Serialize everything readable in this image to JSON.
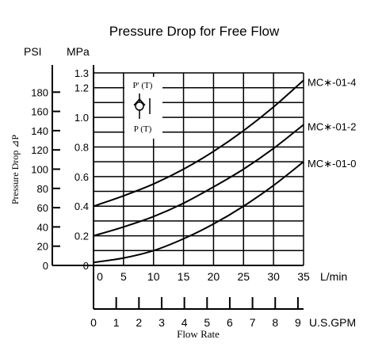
{
  "chart_data": {
    "type": "line",
    "title": "Pressure Drop for Free Flow",
    "y_unit_psi": "PSI",
    "y_unit_mpa": "MPa",
    "ylabel": "Pressure Drop ⊿P",
    "xlabel": "Flow Rate",
    "x_unit_lmin": "L/min",
    "x_unit_gpm": "U.S.GPM",
    "psi_ticks": [
      "180",
      "160",
      "140",
      "120",
      "100",
      "80",
      "60",
      "40",
      "20",
      "0"
    ],
    "psi_tick_values": [
      180,
      160,
      140,
      120,
      100,
      80,
      60,
      40,
      20,
      0
    ],
    "mpa_ticks": [
      "1.3",
      "1.2",
      "1.0",
      "0.8",
      "0.6",
      "0.4",
      "0.2",
      "0"
    ],
    "mpa_tick_values": [
      1.3,
      1.2,
      1.0,
      0.8,
      0.6,
      0.4,
      0.2,
      0
    ],
    "lmin_ticks": [
      "0",
      "5",
      "10",
      "15",
      "20",
      "25",
      "30",
      "35"
    ],
    "lmin_tick_values": [
      0,
      5,
      10,
      15,
      20,
      25,
      30,
      35
    ],
    "gpm_ticks": [
      "0",
      "1",
      "2",
      "3",
      "4",
      "5",
      "6",
      "7",
      "8",
      "9"
    ],
    "gpm_tick_values": [
      0,
      1,
      2,
      3,
      4,
      5,
      6,
      7,
      8,
      9
    ],
    "xlim": [
      0,
      35
    ],
    "ylim_mpa": [
      0,
      1.3
    ],
    "grid": true,
    "symbol_labels": {
      "top": "P' (T)",
      "bottom": "P (T)"
    },
    "series": [
      {
        "name": "MC∗-01-4",
        "x": [
          0,
          5,
          10,
          15,
          20,
          25,
          30,
          35
        ],
        "y": [
          0.4,
          0.47,
          0.55,
          0.65,
          0.77,
          0.91,
          1.07,
          1.25
        ]
      },
      {
        "name": "MC∗-01-2",
        "x": [
          0,
          5,
          10,
          15,
          20,
          25,
          30,
          35
        ],
        "y": [
          0.2,
          0.26,
          0.33,
          0.42,
          0.53,
          0.65,
          0.79,
          0.95
        ]
      },
      {
        "name": "MC∗-01-0",
        "x": [
          0,
          5,
          10,
          15,
          20,
          25,
          30,
          35
        ],
        "y": [
          0.02,
          0.05,
          0.1,
          0.18,
          0.28,
          0.4,
          0.54,
          0.7
        ]
      }
    ]
  }
}
